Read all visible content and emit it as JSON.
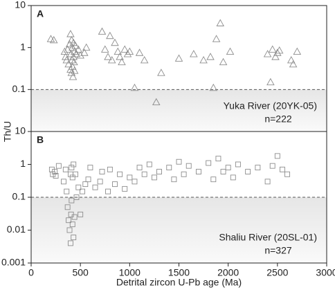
{
  "chart_data": [
    {
      "type": "scatter",
      "marker": "triangle",
      "panel_label": "A",
      "y_label": "Th/U",
      "annotations": [
        "Yuka River (20YK-05)",
        "n=222"
      ],
      "log_y": true,
      "ylim": [
        0.01,
        10
      ],
      "yticks": [
        0.1,
        1,
        10
      ],
      "xlim": [
        0,
        3000
      ],
      "reference_line": 0.1,
      "shade_below_reference": true,
      "series": [
        {
          "color": "#8c8c8c",
          "x": [
            200,
            230,
            340,
            350,
            360,
            370,
            380,
            390,
            400,
            400,
            405,
            410,
            410,
            415,
            420,
            420,
            425,
            430,
            430,
            435,
            440,
            440,
            450,
            460,
            480,
            500,
            540,
            560,
            720,
            750,
            780,
            800,
            820,
            850,
            880,
            900,
            920,
            950,
            980,
            1000,
            1050,
            1100,
            1150,
            1270,
            1320,
            1500,
            1650,
            1750,
            1820,
            1850,
            1880,
            1920,
            1950,
            2020,
            2400,
            2430,
            2450,
            2480,
            2500,
            2520,
            2640,
            2660,
            2700
          ],
          "values": [
            1.6,
            1.5,
            0.8,
            0.6,
            0.5,
            0.9,
            0.4,
            1.2,
            2.1,
            0.3,
            0.7,
            0.25,
            1.5,
            0.5,
            0.35,
            1.0,
            0.2,
            0.6,
            1.3,
            0.45,
            0.8,
            0.28,
            1.1,
            0.7,
            0.9,
            0.65,
            0.75,
            1.0,
            2.4,
            0.9,
            0.6,
            1.9,
            0.5,
            1.3,
            0.8,
            0.6,
            0.45,
            0.9,
            0.7,
            0.8,
            0.11,
            0.75,
            0.5,
            0.05,
            0.25,
            0.55,
            0.7,
            0.5,
            0.6,
            0.11,
            1.6,
            3.8,
            0.45,
            0.8,
            0.7,
            0.15,
            0.9,
            0.6,
            0.75,
            0.85,
            0.5,
            0.4,
            0.8
          ]
        }
      ]
    },
    {
      "type": "scatter",
      "marker": "square",
      "panel_label": "B",
      "x_label": "Detrital zircon U-Pb age (Ma)",
      "annotations": [
        "Shaliu River (20SL-01)",
        "n=327"
      ],
      "log_y": true,
      "ylim": [
        0.001,
        10
      ],
      "yticks": [
        0.001,
        0.01,
        0.1,
        1,
        10
      ],
      "xlim": [
        0,
        3000
      ],
      "xticks": [
        0,
        500,
        1000,
        1500,
        2000,
        2500,
        3000
      ],
      "reference_line": 0.1,
      "shade_below_reference": true,
      "series": [
        {
          "color": "#8c8c8c",
          "x": [
            210,
            220,
            240,
            250,
            280,
            330,
            350,
            360,
            370,
            380,
            390,
            400,
            400,
            405,
            410,
            410,
            420,
            420,
            430,
            430,
            440,
            450,
            460,
            480,
            500,
            520,
            550,
            580,
            600,
            650,
            700,
            720,
            780,
            800,
            850,
            900,
            950,
            1000,
            1050,
            1100,
            1150,
            1200,
            1250,
            1300,
            1400,
            1450,
            1500,
            1550,
            1600,
            1700,
            1800,
            1850,
            1900,
            1950,
            2000,
            2050,
            2100,
            2200,
            2300,
            2400,
            2450,
            2500,
            2550,
            2600
          ],
          "values": [
            0.7,
            0.5,
            0.6,
            0.45,
            0.9,
            0.3,
            0.7,
            0.15,
            0.05,
            0.02,
            0.01,
            0.004,
            0.5,
            0.03,
            0.08,
            0.8,
            0.015,
            0.4,
            0.006,
            1.0,
            0.025,
            0.5,
            0.1,
            0.2,
            0.03,
            0.15,
            0.25,
            0.35,
            0.8,
            0.2,
            0.3,
            0.6,
            0.15,
            0.7,
            0.25,
            0.5,
            0.18,
            0.4,
            0.3,
            0.8,
            0.5,
            1.0,
            0.4,
            0.6,
            0.8,
            0.35,
            1.2,
            0.5,
            0.9,
            0.6,
            1.1,
            0.35,
            1.5,
            0.6,
            0.8,
            0.4,
            1.0,
            0.6,
            0.8,
            0.3,
            0.9,
            1.8,
            0.7,
            0.5
          ]
        }
      ]
    }
  ]
}
